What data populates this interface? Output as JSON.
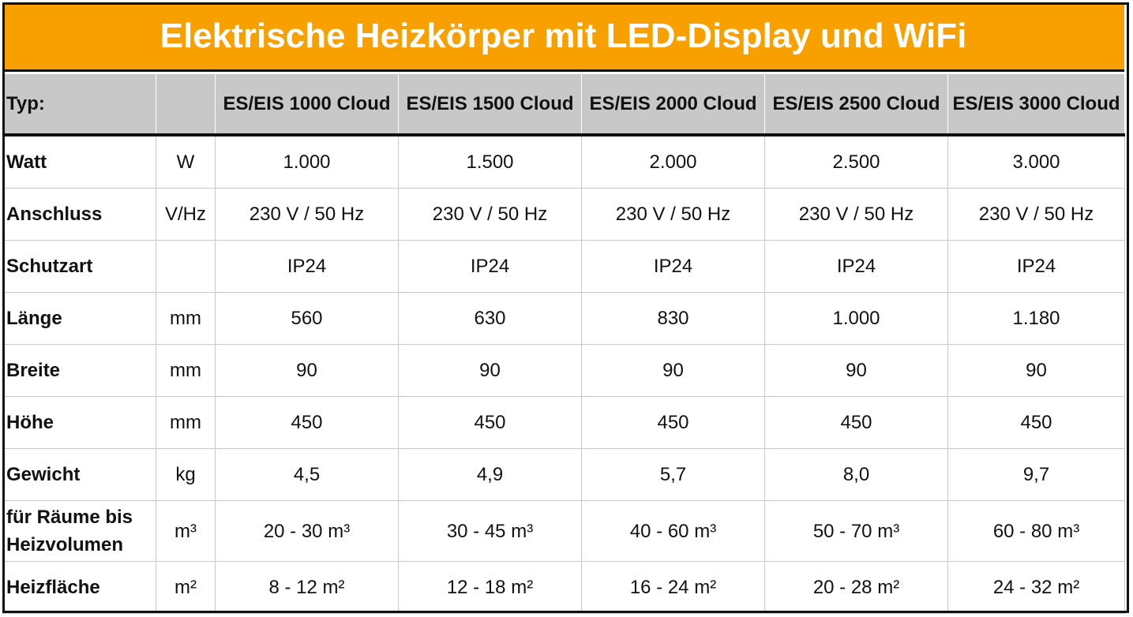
{
  "title": "Elektrische Heizkörper mit LED-Display und WiFi",
  "header": {
    "typ_label": "Typ:",
    "unit_label": "",
    "models": [
      "ES/EIS 1000 Cloud",
      "ES/EIS 1500 Cloud",
      "ES/EIS 2000 Cloud",
      "ES/EIS 2500 Cloud",
      "ES/EIS 3000 Cloud"
    ]
  },
  "rows": [
    {
      "label": "Watt",
      "unit": "W",
      "values": [
        "1.000",
        "1.500",
        "2.000",
        "2.500",
        "3.000"
      ]
    },
    {
      "label": "Anschluss",
      "unit": "V/Hz",
      "values": [
        "230 V / 50 Hz",
        "230 V / 50 Hz",
        "230 V / 50 Hz",
        "230 V / 50 Hz",
        "230 V / 50 Hz"
      ]
    },
    {
      "label": "Schutzart",
      "unit": "",
      "values": [
        "IP24",
        "IP24",
        "IP24",
        "IP24",
        "IP24"
      ]
    },
    {
      "label": "Länge",
      "unit": "mm",
      "values": [
        "560",
        "630",
        "830",
        "1.000",
        "1.180"
      ]
    },
    {
      "label": "Breite",
      "unit": "mm",
      "values": [
        "90",
        "90",
        "90",
        "90",
        "90"
      ]
    },
    {
      "label": "Höhe",
      "unit": "mm",
      "values": [
        "450",
        "450",
        "450",
        "450",
        "450"
      ]
    },
    {
      "label": "Gewicht",
      "unit": "kg",
      "values": [
        "4,5",
        "4,9",
        "5,7",
        "8,0",
        "9,7"
      ]
    },
    {
      "label_line1": "für Räume bis",
      "label_line2": "Heizvolumen",
      "unit": "m³",
      "values": [
        "20 - 30 m³",
        "30 - 45 m³",
        "40 - 60 m³",
        "50 - 70 m³",
        "60 - 80 m³"
      ]
    },
    {
      "label": "Heizfläche",
      "unit": "m²",
      "values": [
        "8 - 12 m²",
        "12 - 18 m²",
        "16 - 24 m²",
        "20 - 28 m²",
        "24 - 32 m²"
      ]
    }
  ]
}
